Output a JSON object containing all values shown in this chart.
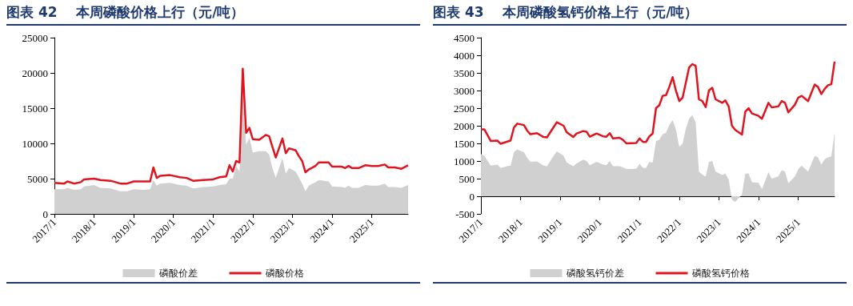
{
  "chart_data": [
    {
      "type": "line",
      "title": "图表 42    本周磷酸价格上行（元/吨）",
      "x": [
        "2017-01",
        "2017-04",
        "2017-05",
        "2017-07",
        "2017-09",
        "2017-10",
        "2018-01",
        "2018-03",
        "2018-06",
        "2018-09",
        "2018-11",
        "2019-01",
        "2019-04",
        "2019-06",
        "2019-07",
        "2019-08",
        "2019-09",
        "2019-12",
        "2020-03",
        "2020-05",
        "2020-07",
        "2020-10",
        "2021-01",
        "2021-03",
        "2021-05",
        "2021-06",
        "2021-07",
        "2021-08",
        "2021-09",
        "2021-10",
        "2021-11",
        "2021-12",
        "2022-01",
        "2022-03",
        "2022-05",
        "2022-06",
        "2022-07",
        "2022-08",
        "2022-10",
        "2022-11",
        "2022-12",
        "2023-02",
        "2023-03",
        "2023-04",
        "2023-05",
        "2023-06",
        "2023-08",
        "2023-09",
        "2023-12",
        "2024-01",
        "2024-04",
        "2024-05",
        "2024-06",
        "2024-07",
        "2024-09",
        "2024-11",
        "2025-01",
        "2025-03",
        "2025-05",
        "2025-06",
        "2025-08",
        "2025-10",
        "2025-12"
      ],
      "series": [
        {
          "name": "磷酸价差",
          "type": "area",
          "color": "#d0d0d0",
          "values": [
            3500,
            3500,
            3700,
            3400,
            3500,
            3900,
            4100,
            3700,
            3600,
            3200,
            3200,
            3500,
            3400,
            3500,
            4800,
            4000,
            4300,
            4400,
            4100,
            4000,
            3600,
            3800,
            3900,
            4100,
            4200,
            5000,
            5000,
            6800,
            6000,
            17000,
            9800,
            10800,
            8700,
            8900,
            8900,
            8400,
            6500,
            5100,
            7900,
            5700,
            6500,
            6000,
            5200,
            4300,
            3200,
            4000,
            4500,
            4800,
            4600,
            3900,
            3800,
            3700,
            4000,
            3700,
            3700,
            4100,
            4000,
            4000,
            4300,
            3800,
            3800,
            3700,
            4100
          ]
        },
        {
          "name": "磷酸价格",
          "type": "line",
          "color": "#e0141e",
          "values": [
            4400,
            4300,
            4600,
            4300,
            4500,
            4900,
            5000,
            4800,
            4700,
            4300,
            4300,
            4600,
            4600,
            4600,
            6600,
            5100,
            5400,
            5500,
            5200,
            5100,
            4700,
            4800,
            4900,
            5200,
            5300,
            6900,
            6000,
            7500,
            7300,
            20600,
            11500,
            12200,
            10600,
            10500,
            11200,
            11000,
            9500,
            8000,
            10700,
            8600,
            9300,
            9000,
            8200,
            7500,
            5900,
            6300,
            6800,
            7300,
            7300,
            6700,
            6700,
            6500,
            6800,
            6500,
            6500,
            6900,
            6800,
            6800,
            7000,
            6600,
            6600,
            6400,
            6900
          ]
        }
      ],
      "xlim": [
        "2017-01",
        "2025-12"
      ],
      "xticks": [
        {
          "value": "2017-01",
          "label": "2017/1"
        },
        {
          "value": "2018-01",
          "label": "2018/1"
        },
        {
          "value": "2019-01",
          "label": "2019/1"
        },
        {
          "value": "2020-01",
          "label": "2020/1"
        },
        {
          "value": "2021-01",
          "label": "2021/1"
        },
        {
          "value": "2022-01",
          "label": "2022/1"
        },
        {
          "value": "2023-01",
          "label": "2023/1"
        },
        {
          "value": "2024-01",
          "label": "2024/1"
        },
        {
          "value": "2025-01",
          "label": "2025/1"
        }
      ],
      "ylim": [
        0,
        25000
      ],
      "yticks": [
        0,
        5000,
        10000,
        15000,
        20000,
        25000
      ],
      "grid": false,
      "legend": "bottom",
      "marker": "none",
      "line_style": "solid"
    },
    {
      "type": "line",
      "title": "图表 43    本周磷酸氢钙价格上行（元/吨）",
      "x": [
        "2017-01",
        "2017-02",
        "2017-04",
        "2017-06",
        "2017-07",
        "2017-09",
        "2017-10",
        "2017-11",
        "2017-12",
        "2018-02",
        "2018-03",
        "2018-04",
        "2018-06",
        "2018-08",
        "2018-09",
        "2018-11",
        "2018-12",
        "2019-02",
        "2019-03",
        "2019-05",
        "2019-06",
        "2019-08",
        "2019-09",
        "2019-10",
        "2019-12",
        "2020-02",
        "2020-03",
        "2020-04",
        "2020-05",
        "2020-07",
        "2020-08",
        "2020-09",
        "2020-12",
        "2021-01",
        "2021-02",
        "2021-03",
        "2021-04",
        "2021-05",
        "2021-06",
        "2021-07",
        "2021-08",
        "2021-09",
        "2021-10",
        "2021-11",
        "2021-12",
        "2022-01",
        "2022-02",
        "2022-03",
        "2022-04",
        "2022-05",
        "2022-06",
        "2022-07",
        "2022-08",
        "2022-09",
        "2022-10",
        "2022-11",
        "2022-12",
        "2023-02",
        "2023-03",
        "2023-04",
        "2023-05",
        "2023-06",
        "2023-08",
        "2023-09",
        "2023-10",
        "2023-11",
        "2024-01",
        "2024-02",
        "2024-04",
        "2024-05",
        "2024-07",
        "2024-08",
        "2024-09",
        "2024-10",
        "2024-12",
        "2025-01",
        "2025-02",
        "2025-04",
        "2025-06",
        "2025-07",
        "2025-08",
        "2025-09",
        "2025-10",
        "2025-11",
        "2025-12"
      ],
      "series": [
        {
          "name": "磷酸氢钙价差",
          "type": "area",
          "color": "#d0d0d0",
          "values": [
            1200,
            1150,
            870,
            900,
            800,
            850,
            870,
            1250,
            1330,
            1250,
            1100,
            980,
            990,
            870,
            850,
            1150,
            1270,
            1150,
            960,
            850,
            930,
            1040,
            1000,
            880,
            980,
            900,
            880,
            1000,
            850,
            850,
            820,
            770,
            780,
            920,
            800,
            800,
            980,
            950,
            1560,
            1600,
            1760,
            1800,
            2020,
            2160,
            1900,
            1400,
            1500,
            1900,
            2200,
            2300,
            2100,
            700,
            620,
            550,
            970,
            1000,
            700,
            600,
            650,
            480,
            -100,
            -160,
            50,
            640,
            650,
            400,
            380,
            200,
            680,
            500,
            560,
            740,
            700,
            370,
            560,
            770,
            870,
            700,
            1150,
            1100,
            900,
            1050,
            1100,
            1130,
            1800
          ]
        },
        {
          "name": "磷酸氢钙价格",
          "type": "line",
          "color": "#e0141e",
          "values": [
            1900,
            1900,
            1570,
            1580,
            1490,
            1550,
            1580,
            1950,
            2060,
            2020,
            1870,
            1760,
            1790,
            1680,
            1670,
            1960,
            2100,
            2000,
            1820,
            1680,
            1780,
            1850,
            1830,
            1690,
            1780,
            1700,
            1690,
            1790,
            1640,
            1660,
            1600,
            1500,
            1510,
            1640,
            1540,
            1540,
            1700,
            1780,
            2500,
            2580,
            2850,
            2870,
            3100,
            3380,
            3000,
            2700,
            2800,
            3200,
            3650,
            3750,
            3700,
            2750,
            2700,
            2530,
            3000,
            3080,
            2750,
            2650,
            2720,
            2550,
            2000,
            1880,
            1750,
            2400,
            2500,
            2350,
            2280,
            2200,
            2650,
            2520,
            2550,
            2700,
            2650,
            2380,
            2600,
            2800,
            2850,
            2700,
            3170,
            3100,
            2900,
            3050,
            3150,
            3180,
            3820
          ]
        }
      ],
      "xlim": [
        "2017-01",
        "2025-12"
      ],
      "xticks": [
        {
          "value": "2017-01",
          "label": "2017/1"
        },
        {
          "value": "2018-01",
          "label": "2018/1"
        },
        {
          "value": "2019-01",
          "label": "2019/1"
        },
        {
          "value": "2020-01",
          "label": "2020/1"
        },
        {
          "value": "2021-01",
          "label": "2021/1"
        },
        {
          "value": "2022-01",
          "label": "2022/1"
        },
        {
          "value": "2023-01",
          "label": "2023/1"
        },
        {
          "value": "2024-01",
          "label": "2024/1"
        },
        {
          "value": "2025-01",
          "label": "2025/1"
        }
      ],
      "ylim": [
        -500,
        4500
      ],
      "yticks": [
        -500,
        0,
        500,
        1000,
        1500,
        2000,
        2500,
        3000,
        3500,
        4000,
        4500
      ],
      "grid": false,
      "legend": "bottom",
      "marker": "none",
      "line_style": "solid"
    }
  ]
}
